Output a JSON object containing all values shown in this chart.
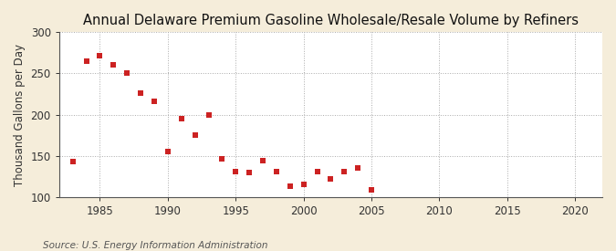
{
  "title": "Annual Delaware Premium Gasoline Wholesale/Resale Volume by Refiners",
  "ylabel": "Thousand Gallons per Day",
  "source": "Source: U.S. Energy Information Administration",
  "fig_bg_color": "#f5edda",
  "plot_bg_color": "#ffffff",
  "marker_color": "#cc2222",
  "grid_color": "#aaaaaa",
  "spine_color": "#555555",
  "years": [
    1983,
    1984,
    1985,
    1986,
    1987,
    1988,
    1989,
    1990,
    1991,
    1992,
    1993,
    1994,
    1995,
    1996,
    1997,
    1998,
    1999,
    2000,
    2001,
    2002,
    2003,
    2004,
    2005
  ],
  "values": [
    143,
    265,
    272,
    261,
    250,
    226,
    216,
    155,
    195,
    175,
    200,
    147,
    131,
    130,
    144,
    131,
    113,
    116,
    131,
    122,
    131,
    135,
    109
  ],
  "xlim": [
    1982,
    2022
  ],
  "ylim": [
    100,
    300
  ],
  "xticks": [
    1985,
    1990,
    1995,
    2000,
    2005,
    2010,
    2015,
    2020
  ],
  "yticks": [
    100,
    150,
    200,
    250,
    300
  ],
  "title_fontsize": 10.5,
  "label_fontsize": 8.5,
  "tick_fontsize": 8.5,
  "source_fontsize": 7.5
}
